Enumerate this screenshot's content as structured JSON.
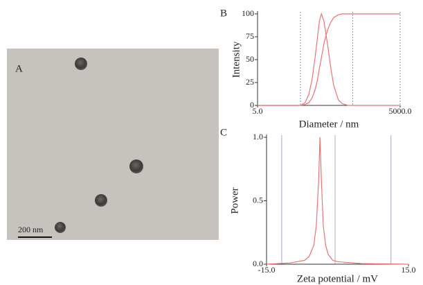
{
  "image": {
    "label": "A",
    "scale_bar": "200 nm"
  },
  "chart_data": [
    {
      "type": "line",
      "label": "B",
      "ylabel": "Intensity",
      "xlabel": "Diameter / nm",
      "xscale": "log",
      "x": [
        5,
        40,
        50,
        60,
        70,
        80,
        90,
        100,
        110,
        125,
        150,
        175,
        200,
        250,
        300,
        400,
        500,
        1000,
        2000,
        5000
      ],
      "series": [
        {
          "color": "#f07070",
          "values": [
            0,
            0,
            3,
            12,
            28,
            50,
            72,
            92,
            100,
            92,
            65,
            40,
            22,
            6,
            2,
            0,
            0,
            0,
            0,
            0
          ]
        },
        {
          "color": "#f07070",
          "values": [
            0,
            0,
            1,
            3,
            8,
            16,
            27,
            40,
            52,
            68,
            83,
            91,
            96,
            99,
            100,
            100,
            100,
            100,
            100,
            100
          ]
        }
      ],
      "xlim": [
        5,
        5000
      ],
      "ylim": [
        0,
        100
      ],
      "xticks": [
        {
          "value": 5,
          "label": "5.0"
        },
        {
          "value": 5000,
          "label": "5000.0"
        }
      ],
      "yticks": [
        0,
        25,
        50,
        75,
        100
      ],
      "reference_lines": [
        {
          "value": 40,
          "color": "#8890b0"
        },
        {
          "value": 500,
          "color": "#909090"
        },
        {
          "value": 5000,
          "color": "#909090"
        }
      ]
    },
    {
      "type": "line",
      "label": "C",
      "ylabel": "Power",
      "xlabel": "Zeta potential / mV",
      "xscale": "linear",
      "x": [
        -15,
        -10,
        -7,
        -6,
        -5,
        -4.5,
        -4,
        -3.7,
        -3.4,
        -3,
        -2.5,
        -2,
        -1,
        0,
        5,
        15
      ],
      "series": [
        {
          "color": "#f07070",
          "values": [
            0,
            0.01,
            0.03,
            0.06,
            0.15,
            0.3,
            0.65,
            1.0,
            0.65,
            0.3,
            0.15,
            0.08,
            0.03,
            0.02,
            0.005,
            0
          ]
        }
      ],
      "xlim": [
        -15,
        15
      ],
      "ylim": [
        0,
        1
      ],
      "xticks": [
        {
          "value": -15,
          "label": "-15.0"
        },
        {
          "value": 15,
          "label": "15.0"
        }
      ],
      "yticks": [
        {
          "value": 0,
          "label": "0.0"
        },
        0.5,
        {
          "value": 1,
          "label": "1.0"
        }
      ],
      "reference_lines": [
        {
          "value": -15,
          "color": "#b8a860"
        },
        {
          "value": -11.8,
          "color": "#a0a8c8"
        },
        {
          "value": -0.5,
          "color": "#b0b0b0"
        },
        {
          "value": 11.3,
          "color": "#a0a8c8"
        }
      ]
    }
  ]
}
